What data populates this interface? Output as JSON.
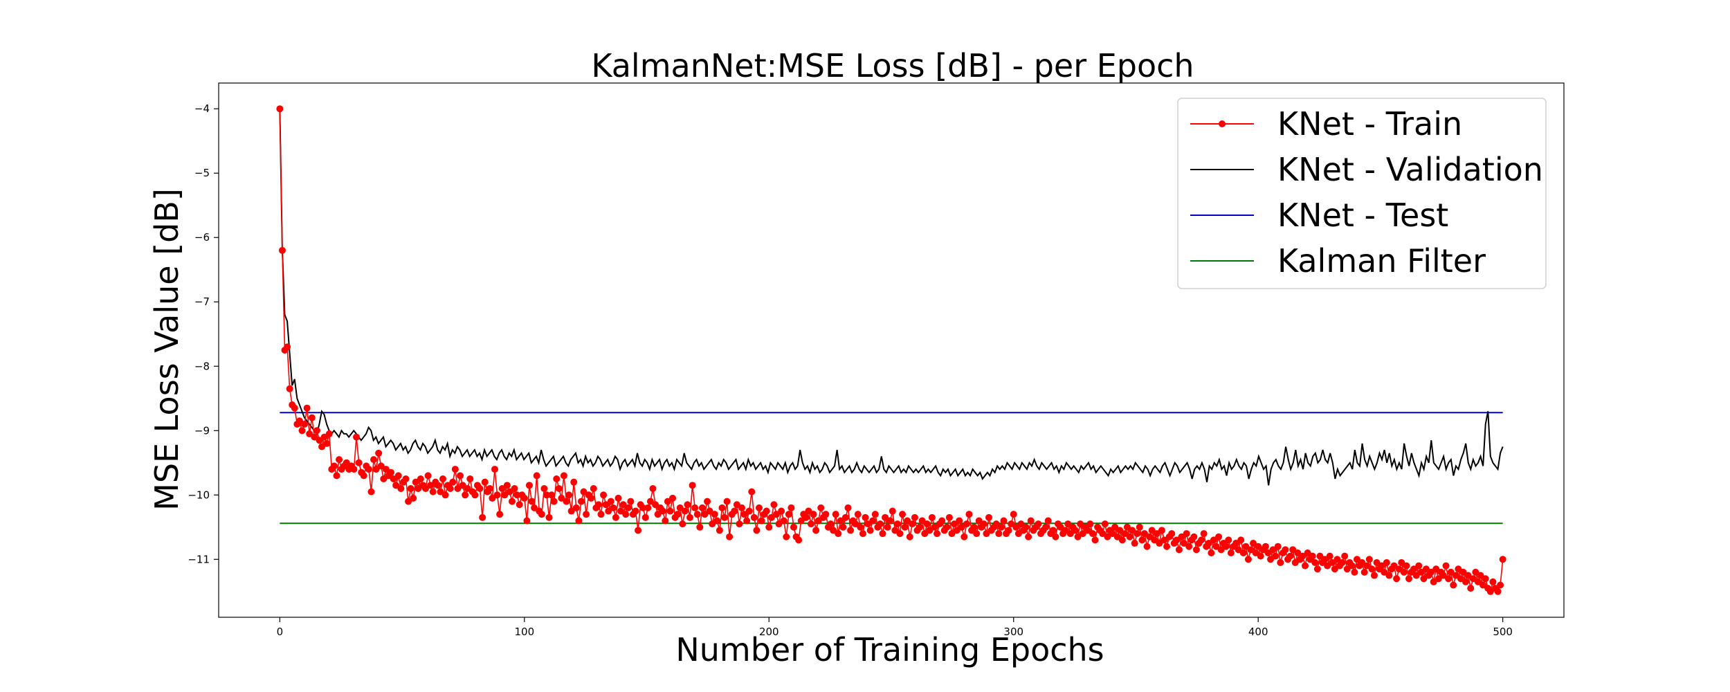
{
  "chart_data": {
    "type": "line",
    "title": "KalmanNet:MSE Loss [dB] - per Epoch",
    "xlabel": "Number of Training Epochs",
    "ylabel": "MSE Loss Value [dB]",
    "xlim": [
      -25,
      525
    ],
    "ylim": [
      -11.9,
      -3.6
    ],
    "xticks": [
      0,
      100,
      200,
      300,
      400,
      500
    ],
    "yticks": [
      -4,
      -5,
      -6,
      -7,
      -8,
      -9,
      -10,
      -11
    ],
    "grid": false,
    "legend_position": "top-right",
    "series": [
      {
        "name": "KNet - Train",
        "color": "#ff0000",
        "marker": "circle",
        "x_range": [
          0,
          500
        ],
        "values": [
          -4.0,
          -6.2,
          -7.75,
          -7.7,
          -8.35,
          -8.6,
          -8.65,
          -8.9,
          -8.85,
          -9.0,
          -8.9,
          -8.65,
          -9.05,
          -8.8,
          -9.1,
          -9.0,
          -9.15,
          -9.25,
          -9.1,
          -9.2,
          -9.05,
          -9.6,
          -9.55,
          -9.7,
          -9.45,
          -9.6,
          -9.55,
          -9.5,
          -9.6,
          -9.55,
          -9.6,
          -9.1,
          -9.5,
          -9.65,
          -9.7,
          -9.55,
          -9.6,
          -9.95,
          -9.45,
          -9.6,
          -9.35,
          -9.55,
          -9.75,
          -9.6,
          -9.7,
          -9.65,
          -9.75,
          -9.85,
          -9.7,
          -9.9,
          -9.8,
          -9.75,
          -10.1,
          -9.9,
          -10.05,
          -9.8,
          -9.9,
          -9.75,
          -9.85,
          -9.9,
          -9.7,
          -9.85,
          -9.95,
          -9.8,
          -9.85,
          -9.95,
          -9.75,
          -10.0,
          -9.85,
          -9.9,
          -9.8,
          -9.6,
          -9.9,
          -9.7,
          -9.85,
          -10.0,
          -9.9,
          -9.75,
          -9.95,
          -10.0,
          -9.85,
          -9.9,
          -10.35,
          -9.8,
          -9.95,
          -9.9,
          -10.05,
          -9.6,
          -10.0,
          -10.3,
          -9.9,
          -10.0,
          -9.85,
          -9.95,
          -10.1,
          -9.9,
          -10.0,
          -10.15,
          -10.0,
          -10.05,
          -10.4,
          -9.85,
          -10.1,
          -10.2,
          -9.7,
          -10.25,
          -10.3,
          -9.9,
          -10.0,
          -10.35,
          -10.0,
          -10.1,
          -9.75,
          -9.9,
          -10.05,
          -9.7,
          -10.1,
          -10.0,
          -10.25,
          -9.8,
          -10.2,
          -10.4,
          -10.1,
          -9.95,
          -10.3,
          -10.0,
          -10.05,
          -9.9,
          -10.2,
          -10.15,
          -10.3,
          -10.0,
          -10.15,
          -10.25,
          -10.1,
          -10.2,
          -10.35,
          -10.05,
          -10.25,
          -10.15,
          -10.3,
          -10.2,
          -10.1,
          -10.3,
          -10.25,
          -10.55,
          -10.15,
          -10.2,
          -10.35,
          -10.2,
          -10.1,
          -9.9,
          -10.15,
          -10.3,
          -10.2,
          -10.25,
          -10.4,
          -10.1,
          -10.25,
          -10.05,
          -10.35,
          -10.3,
          -10.2,
          -10.45,
          -10.25,
          -10.15,
          -10.35,
          -9.85,
          -10.2,
          -10.3,
          -10.5,
          -10.2,
          -10.3,
          -10.1,
          -10.25,
          -10.45,
          -10.3,
          -10.4,
          -10.55,
          -10.2,
          -10.35,
          -10.1,
          -10.65,
          -10.3,
          -10.25,
          -10.15,
          -10.45,
          -10.2,
          -10.3,
          -10.4,
          -10.25,
          -9.95,
          -10.35,
          -10.55,
          -10.2,
          -10.4,
          -10.3,
          -10.25,
          -10.5,
          -10.35,
          -10.15,
          -10.3,
          -10.45,
          -10.25,
          -10.4,
          -10.65,
          -10.3,
          -10.2,
          -10.5,
          -10.65,
          -10.7,
          -10.4,
          -10.3,
          -10.35,
          -10.25,
          -10.45,
          -10.3,
          -10.55,
          -10.4,
          -10.2,
          -10.35,
          -10.3,
          -10.5,
          -10.45,
          -10.55,
          -10.3,
          -10.6,
          -10.4,
          -10.5,
          -10.35,
          -10.2,
          -10.55,
          -10.4,
          -10.45,
          -10.3,
          -10.5,
          -10.6,
          -10.35,
          -10.45,
          -10.55,
          -10.4,
          -10.3,
          -10.5,
          -10.45,
          -10.6,
          -10.35,
          -10.5,
          -10.4,
          -10.25,
          -10.55,
          -10.45,
          -10.6,
          -10.3,
          -10.5,
          -10.4,
          -10.65,
          -10.45,
          -10.35,
          -10.55,
          -10.5,
          -10.4,
          -10.6,
          -10.45,
          -10.55,
          -10.35,
          -10.5,
          -10.6,
          -10.45,
          -10.4,
          -10.55,
          -10.5,
          -10.35,
          -10.6,
          -10.45,
          -10.55,
          -10.4,
          -10.5,
          -10.65,
          -10.45,
          -10.3,
          -10.55,
          -10.5,
          -10.6,
          -10.4,
          -10.5,
          -10.45,
          -10.6,
          -10.35,
          -10.55,
          -10.5,
          -10.45,
          -10.6,
          -10.5,
          -10.4,
          -10.6,
          -10.55,
          -10.45,
          -10.3,
          -10.5,
          -10.6,
          -10.45,
          -10.55,
          -10.5,
          -10.65,
          -10.4,
          -10.55,
          -10.5,
          -10.45,
          -10.6,
          -10.55,
          -10.5,
          -10.4,
          -10.6,
          -10.55,
          -10.65,
          -10.45,
          -10.5,
          -10.6,
          -10.55,
          -10.45,
          -10.6,
          -10.5,
          -10.55,
          -10.65,
          -10.45,
          -10.6,
          -10.5,
          -10.55,
          -10.45,
          -10.6,
          -10.7,
          -10.5,
          -10.55,
          -10.6,
          -10.45,
          -10.65,
          -10.55,
          -10.6,
          -10.5,
          -10.65,
          -10.55,
          -10.7,
          -10.6,
          -10.5,
          -10.65,
          -10.55,
          -10.75,
          -10.6,
          -10.5,
          -10.7,
          -10.6,
          -10.8,
          -10.65,
          -10.55,
          -10.7,
          -10.6,
          -10.75,
          -10.55,
          -10.7,
          -10.8,
          -10.65,
          -10.6,
          -10.75,
          -10.7,
          -10.85,
          -10.65,
          -10.75,
          -10.6,
          -10.8,
          -10.7,
          -10.65,
          -10.85,
          -10.75,
          -10.7,
          -10.6,
          -10.8,
          -10.75,
          -10.9,
          -10.7,
          -10.8,
          -10.65,
          -10.85,
          -10.75,
          -10.8,
          -10.7,
          -10.9,
          -10.8,
          -10.75,
          -10.85,
          -10.7,
          -10.9,
          -10.8,
          -11.0,
          -10.85,
          -10.75,
          -10.9,
          -10.8,
          -10.95,
          -10.85,
          -10.8,
          -10.9,
          -11.0,
          -10.85,
          -10.95,
          -10.8,
          -11.05,
          -10.9,
          -10.85,
          -11.0,
          -10.95,
          -10.85,
          -11.05,
          -10.9,
          -11.0,
          -10.95,
          -11.1,
          -10.9,
          -11.0,
          -10.95,
          -11.05,
          -11.15,
          -10.95,
          -11.05,
          -11.0,
          -11.1,
          -10.95,
          -11.05,
          -11.15,
          -11.0,
          -11.1,
          -11.05,
          -10.95,
          -11.15,
          -11.05,
          -11.1,
          -11.2,
          -11.0,
          -11.1,
          -11.05,
          -11.2,
          -11.1,
          -11.0,
          -11.15,
          -11.25,
          -11.05,
          -11.15,
          -11.1,
          -11.2,
          -11.05,
          -11.25,
          -11.15,
          -11.1,
          -11.3,
          -11.15,
          -11.05,
          -11.2,
          -11.1,
          -11.3,
          -11.2,
          -11.15,
          -11.25,
          -11.1,
          -11.2,
          -11.3,
          -11.15,
          -11.25,
          -11.2,
          -11.35,
          -11.15,
          -11.3,
          -11.2,
          -11.25,
          -11.1,
          -11.3,
          -11.2,
          -11.4,
          -11.25,
          -11.15,
          -11.3,
          -11.2,
          -11.35,
          -11.25,
          -11.45,
          -11.3,
          -11.2,
          -11.35,
          -11.25,
          -11.4,
          -11.3,
          -11.45,
          -11.5,
          -11.35,
          -11.45,
          -11.5,
          -11.4,
          -11.0
        ]
      },
      {
        "name": "KNet - Validation",
        "color": "#000000",
        "marker": "none",
        "x_range": [
          0,
          500
        ],
        "values": [
          -4.0,
          -6.2,
          -7.2,
          -7.3,
          -7.8,
          -8.3,
          -8.2,
          -8.5,
          -8.6,
          -8.7,
          -8.8,
          -8.85,
          -8.9,
          -8.95,
          -9.0,
          -9.05,
          -8.9,
          -8.7,
          -8.75,
          -8.9,
          -9.0,
          -9.05,
          -9.0,
          -9.05,
          -9.1,
          -9.0,
          -9.05,
          -9.05,
          -9.1,
          -9.05,
          -9.0,
          -9.05,
          -9.1,
          -9.15,
          -9.1,
          -9.05,
          -8.95,
          -9.0,
          -9.15,
          -9.1,
          -9.2,
          -9.15,
          -9.1,
          -9.25,
          -9.2,
          -9.15,
          -9.2,
          -9.3,
          -9.25,
          -9.2,
          -9.3,
          -9.25,
          -9.35,
          -9.3,
          -9.2,
          -9.15,
          -9.25,
          -9.3,
          -9.2,
          -9.25,
          -9.35,
          -9.3,
          -9.25,
          -9.15,
          -9.3,
          -9.35,
          -9.25,
          -9.3,
          -9.2,
          -9.4,
          -9.3,
          -9.35,
          -9.25,
          -9.3,
          -9.4,
          -9.35,
          -9.3,
          -9.4,
          -9.35,
          -9.3,
          -9.4,
          -9.35,
          -9.45,
          -9.3,
          -9.4,
          -9.35,
          -9.3,
          -9.4,
          -9.45,
          -9.35,
          -9.3,
          -9.4,
          -9.45,
          -9.35,
          -9.4,
          -9.3,
          -9.45,
          -9.4,
          -9.35,
          -9.45,
          -9.4,
          -9.35,
          -9.5,
          -9.45,
          -9.4,
          -9.5,
          -9.3,
          -9.45,
          -9.55,
          -9.5,
          -9.45,
          -9.4,
          -9.55,
          -9.5,
          -9.45,
          -9.4,
          -9.5,
          -9.55,
          -9.45,
          -9.4,
          -9.35,
          -9.5,
          -9.45,
          -9.55,
          -9.4,
          -9.5,
          -9.45,
          -9.55,
          -9.5,
          -9.4,
          -9.45,
          -9.55,
          -9.5,
          -9.45,
          -9.55,
          -9.5,
          -9.4,
          -9.45,
          -9.6,
          -9.5,
          -9.45,
          -9.55,
          -9.5,
          -9.45,
          -9.55,
          -9.35,
          -9.5,
          -9.55,
          -9.45,
          -9.5,
          -9.6,
          -9.45,
          -9.55,
          -9.5,
          -9.45,
          -9.6,
          -9.5,
          -9.45,
          -9.55,
          -9.5,
          -9.6,
          -9.45,
          -9.5,
          -9.55,
          -9.35,
          -9.5,
          -9.55,
          -9.6,
          -9.5,
          -9.45,
          -9.55,
          -9.5,
          -9.6,
          -9.55,
          -9.5,
          -9.45,
          -9.55,
          -9.6,
          -9.5,
          -9.55,
          -9.45,
          -9.5,
          -9.6,
          -9.55,
          -9.5,
          -9.45,
          -9.6,
          -9.55,
          -9.5,
          -9.6,
          -9.45,
          -9.55,
          -9.5,
          -9.6,
          -9.55,
          -9.5,
          -9.6,
          -9.55,
          -9.65,
          -9.5,
          -9.55,
          -9.6,
          -9.5,
          -9.55,
          -9.6,
          -9.5,
          -9.65,
          -9.55,
          -9.5,
          -9.6,
          -9.55,
          -9.3,
          -9.5,
          -9.6,
          -9.55,
          -9.65,
          -9.5,
          -9.6,
          -9.55,
          -9.65,
          -9.6,
          -9.5,
          -9.55,
          -9.65,
          -9.6,
          -9.55,
          -9.3,
          -9.6,
          -9.55,
          -9.65,
          -9.6,
          -9.55,
          -9.65,
          -9.6,
          -9.5,
          -9.6,
          -9.65,
          -9.55,
          -9.6,
          -9.65,
          -9.6,
          -9.55,
          -9.65,
          -9.6,
          -9.4,
          -9.6,
          -9.65,
          -9.55,
          -9.6,
          -9.65,
          -9.6,
          -9.55,
          -9.65,
          -9.6,
          -9.65,
          -9.55,
          -9.6,
          -9.65,
          -9.6,
          -9.65,
          -9.6,
          -9.55,
          -9.65,
          -9.6,
          -9.65,
          -9.6,
          -9.55,
          -9.65,
          -9.7,
          -9.6,
          -9.65,
          -9.6,
          -9.7,
          -9.65,
          -9.6,
          -9.7,
          -9.65,
          -9.6,
          -9.7,
          -9.65,
          -9.7,
          -9.6,
          -9.65,
          -9.7,
          -9.65,
          -9.75,
          -9.7,
          -9.65,
          -9.7,
          -9.6,
          -9.65,
          -9.55,
          -9.6,
          -9.55,
          -9.6,
          -9.5,
          -9.55,
          -9.6,
          -9.5,
          -9.55,
          -9.6,
          -9.5,
          -9.55,
          -9.6,
          -9.5,
          -9.55,
          -9.45,
          -9.55,
          -9.6,
          -9.5,
          -9.55,
          -9.6,
          -9.55,
          -9.5,
          -9.6,
          -9.55,
          -9.65,
          -9.55,
          -9.6,
          -9.5,
          -9.55,
          -9.6,
          -9.55,
          -9.6,
          -9.65,
          -9.55,
          -9.6,
          -9.55,
          -9.5,
          -9.6,
          -9.55,
          -9.65,
          -9.6,
          -9.55,
          -9.6,
          -9.65,
          -9.7,
          -9.6,
          -9.65,
          -9.6,
          -9.55,
          -9.65,
          -9.6,
          -9.55,
          -9.6,
          -9.55,
          -9.6,
          -9.5,
          -9.55,
          -9.6,
          -9.65,
          -9.55,
          -9.6,
          -9.7,
          -9.6,
          -9.55,
          -9.6,
          -9.65,
          -9.55,
          -9.5,
          -9.6,
          -9.7,
          -9.6,
          -9.5,
          -9.55,
          -9.65,
          -9.6,
          -9.55,
          -9.5,
          -9.6,
          -9.75,
          -9.6,
          -9.55,
          -9.6,
          -9.5,
          -9.6,
          -9.8,
          -9.55,
          -9.6,
          -9.5,
          -9.55,
          -9.45,
          -9.6,
          -9.55,
          -9.7,
          -9.5,
          -9.6,
          -9.55,
          -9.45,
          -9.55,
          -9.6,
          -9.5,
          -9.55,
          -9.75,
          -9.6,
          -9.5,
          -9.55,
          -9.4,
          -9.5,
          -9.6,
          -9.55,
          -9.85,
          -9.6,
          -9.5,
          -9.45,
          -9.55,
          -9.6,
          -9.5,
          -9.25,
          -9.45,
          -9.6,
          -9.5,
          -9.3,
          -9.55,
          -9.45,
          -9.6,
          -9.35,
          -9.5,
          -9.55,
          -9.4,
          -9.35,
          -9.5,
          -9.45,
          -9.3,
          -9.45,
          -9.5,
          -9.35,
          -9.5,
          -9.75,
          -9.6,
          -9.7,
          -9.65,
          -9.6,
          -9.55,
          -9.5,
          -9.6,
          -9.3,
          -9.5,
          -9.55,
          -9.2,
          -9.45,
          -9.55,
          -9.4,
          -9.5,
          -9.6,
          -9.5,
          -9.35,
          -9.45,
          -9.3,
          -9.5,
          -9.35,
          -9.55,
          -9.45,
          -9.6,
          -9.5,
          -9.6,
          -9.2,
          -9.4,
          -9.55,
          -9.35,
          -9.5,
          -9.6,
          -9.7,
          -9.5,
          -9.6,
          -9.4,
          -9.5,
          -9.15,
          -9.5,
          -9.55,
          -9.6,
          -9.5,
          -9.4,
          -9.6,
          -9.5,
          -9.45,
          -9.7,
          -9.55,
          -9.6,
          -9.45,
          -9.35,
          -9.2,
          -9.5,
          -9.6,
          -9.45,
          -9.55,
          -9.5,
          -9.4,
          -9.55,
          -8.9,
          -8.7,
          -9.4,
          -9.5,
          -9.55,
          -9.6,
          -9.35,
          -9.25
        ]
      },
      {
        "name": "KNet - Test",
        "color": "#0000cc",
        "marker": "none",
        "x": [
          0,
          500
        ],
        "values": [
          -8.72,
          -8.72
        ]
      },
      {
        "name": "Kalman Filter",
        "color": "#007700",
        "marker": "none",
        "x": [
          0,
          500
        ],
        "values": [
          -10.44,
          -10.44
        ]
      }
    ]
  }
}
